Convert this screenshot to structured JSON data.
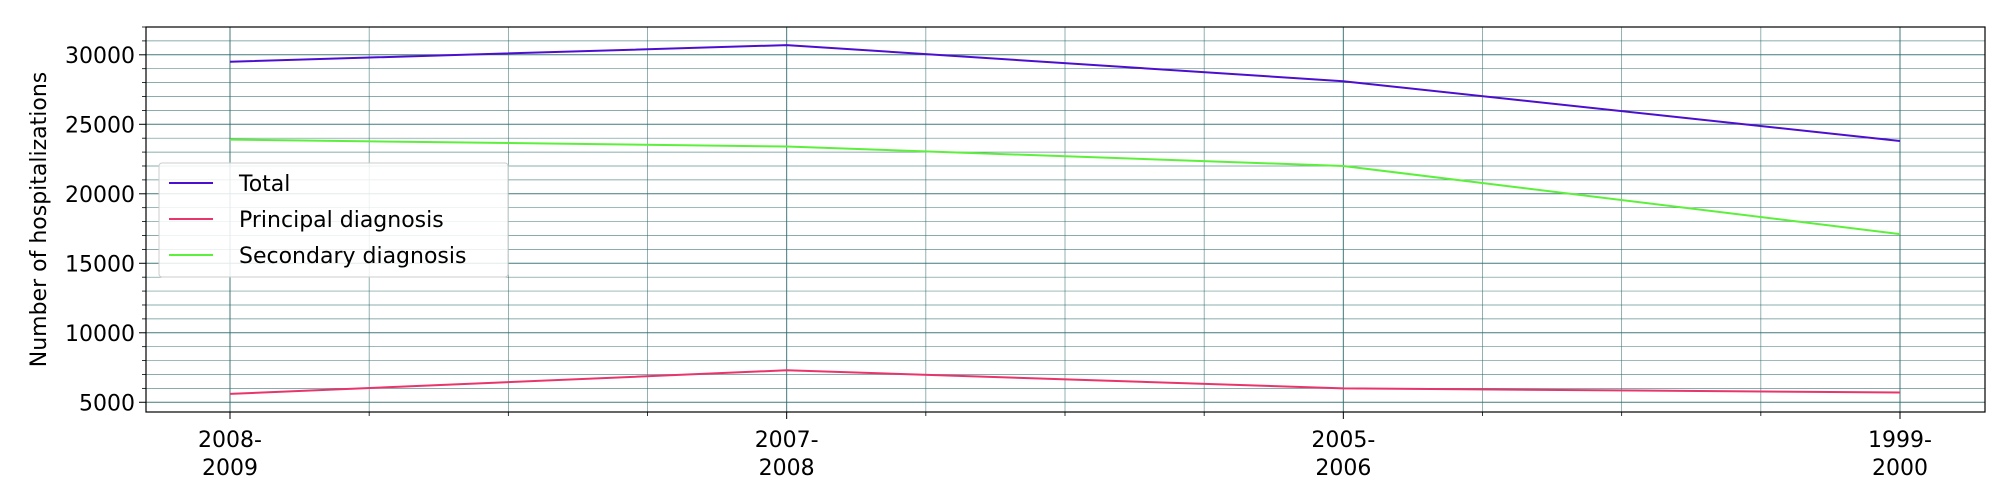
{
  "chart_data": {
    "type": "line",
    "categories": [
      "2008-2009",
      "2007-2008",
      "2005-2006",
      "1999-2000"
    ],
    "category_tick_labels": [
      [
        "2008-",
        "2009"
      ],
      [
        "2007-",
        "2008"
      ],
      [
        "2005-",
        "2006"
      ],
      [
        "1999-",
        "2000"
      ]
    ],
    "ylabel": "Number of hospitalizations",
    "xlabel": "",
    "ylim": [
      4300,
      32000
    ],
    "yticks": [
      5000,
      10000,
      15000,
      20000,
      25000,
      30000
    ],
    "ytick_labels": [
      "5000",
      "10000",
      "15000",
      "20000",
      "25000",
      "30000"
    ],
    "y_minor_step": 1000,
    "x_minor_per_interval": 4,
    "grid": true,
    "legend_position": "center-left",
    "series": [
      {
        "name": "Total",
        "color": "#4c0fd0",
        "values": [
          29500,
          30700,
          28100,
          23800
        ]
      },
      {
        "name": "Principal diagnosis",
        "color": "#e8356c",
        "values": [
          5600,
          7300,
          6000,
          5700
        ]
      },
      {
        "name": "Secondary diagnosis",
        "color": "#5cf03c",
        "values": [
          23900,
          23400,
          22000,
          17100
        ]
      }
    ]
  }
}
